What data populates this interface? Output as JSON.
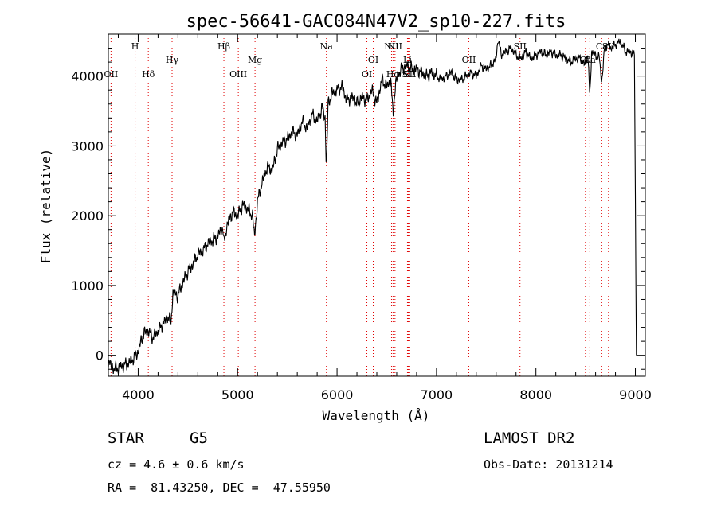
{
  "info": {
    "object_class": "STAR",
    "subclass": "G5",
    "survey": "LAMOST DR2",
    "redshift": "cz = 4.6 ± 0.6 km/s",
    "obs_date": "Obs-Date: 20131214",
    "coords": "RA =  81.43250, DEC =  47.55950"
  },
  "chart_data": {
    "type": "line",
    "title": "spec-56641-GAC084N47V2_sp10-227.fits",
    "xlabel": "Wavelength (Å)",
    "ylabel": "Flux (relative)",
    "xlim": [
      3700,
      9100
    ],
    "ylim": [
      -300,
      4600
    ],
    "xticks": [
      4000,
      5000,
      6000,
      7000,
      8000,
      9000
    ],
    "yticks": [
      0,
      1000,
      2000,
      3000,
      4000
    ],
    "series": [
      {
        "name": "flux",
        "x": [
          3700,
          3760,
          3800,
          3850,
          3900,
          3950,
          4000,
          4050,
          4100,
          4150,
          4200,
          4250,
          4300,
          4330,
          4350,
          4400,
          4450,
          4500,
          4550,
          4600,
          4650,
          4700,
          4750,
          4800,
          4850,
          4860,
          4900,
          4950,
          5000,
          5050,
          5100,
          5150,
          5170,
          5200,
          5250,
          5300,
          5350,
          5400,
          5450,
          5500,
          5550,
          5600,
          5650,
          5700,
          5750,
          5800,
          5850,
          5880,
          5893,
          5910,
          5950,
          6000,
          6050,
          6100,
          6150,
          6200,
          6250,
          6300,
          6350,
          6400,
          6450,
          6500,
          6540,
          6563,
          6590,
          6620,
          6650,
          6700,
          6750,
          6800,
          6850,
          6900,
          6950,
          7000,
          7050,
          7100,
          7150,
          7200,
          7250,
          7300,
          7350,
          7400,
          7450,
          7500,
          7550,
          7600,
          7620,
          7650,
          7700,
          7750,
          7800,
          7850,
          7900,
          7950,
          8000,
          8050,
          8100,
          8150,
          8200,
          8250,
          8300,
          8350,
          8400,
          8450,
          8498,
          8520,
          8542,
          8560,
          8600,
          8640,
          8662,
          8690,
          8720,
          8750,
          8800,
          8850,
          8900,
          8950,
          8990,
          9000,
          9010
        ],
        "values": [
          -100,
          -200,
          -180,
          -150,
          -120,
          -50,
          50,
          300,
          350,
          250,
          350,
          450,
          550,
          480,
          900,
          850,
          1050,
          1200,
          1300,
          1450,
          1500,
          1600,
          1650,
          1700,
          1850,
          1600,
          1900,
          2050,
          2000,
          2150,
          2100,
          2000,
          1700,
          2200,
          2500,
          2700,
          2650,
          2950,
          3050,
          3100,
          3200,
          3150,
          3350,
          3250,
          3450,
          3350,
          3550,
          3400,
          2650,
          3600,
          3750,
          3800,
          3850,
          3650,
          3700,
          3600,
          3700,
          3650,
          3800,
          3600,
          3950,
          3850,
          3950,
          3450,
          3900,
          4050,
          4100,
          4150,
          4100,
          4100,
          4050,
          4000,
          4050,
          4000,
          3950,
          4000,
          4050,
          3950,
          3950,
          4000,
          4050,
          4000,
          4150,
          4100,
          4150,
          4250,
          4550,
          4300,
          4350,
          4400,
          4300,
          4250,
          4350,
          4250,
          4300,
          4350,
          4300,
          4350,
          4300,
          4300,
          4250,
          4200,
          4250,
          4250,
          4150,
          4350,
          3700,
          4350,
          4300,
          4250,
          3900,
          4400,
          4450,
          4400,
          4450,
          4500,
          4350,
          4350,
          4300,
          2300,
          0
        ]
      }
    ],
    "lines": [
      {
        "label": "OII",
        "wave": 3727,
        "row": 3
      },
      {
        "label": "H",
        "wave": 3969,
        "row": 1
      },
      {
        "label": "Hδ",
        "wave": 4102,
        "row": 3
      },
      {
        "label": "Hγ",
        "wave": 4341,
        "row": 2
      },
      {
        "label": "Hβ",
        "wave": 4862,
        "row": 1
      },
      {
        "label": "OIII",
        "wave": 5007,
        "row": 3
      },
      {
        "label": "Mg",
        "wave": 5175,
        "row": 2
      },
      {
        "label": "Na",
        "wave": 5893,
        "row": 1
      },
      {
        "label": "OI",
        "wave": 6300,
        "row": 3
      },
      {
        "label": "OI",
        "wave": 6364,
        "row": 2
      },
      {
        "label": "NII",
        "wave": 6548,
        "row": 1
      },
      {
        "label": "Hα",
        "wave": 6563,
        "row": 3
      },
      {
        "label": "NII",
        "wave": 6583,
        "row": 1
      },
      {
        "label": "Li",
        "wave": 6708,
        "row": 2
      },
      {
        "label": "SII",
        "wave": 6716,
        "row": 3
      },
      {
        "label": "SII",
        "wave": 6731,
        "row": 3
      },
      {
        "label": "OII",
        "wave": 7325,
        "row": 2
      },
      {
        "label": "SII",
        "wave": 7840,
        "row": 1
      },
      {
        "label": "Ca",
        "wave": 8498,
        "row": 2
      },
      {
        "label": "Ca",
        "wave": 8542,
        "row": 2
      },
      {
        "label": "Ca",
        "wave": 8662,
        "row": 1
      },
      {
        "label": "SII",
        "wave": 8730,
        "row": 1
      }
    ]
  }
}
